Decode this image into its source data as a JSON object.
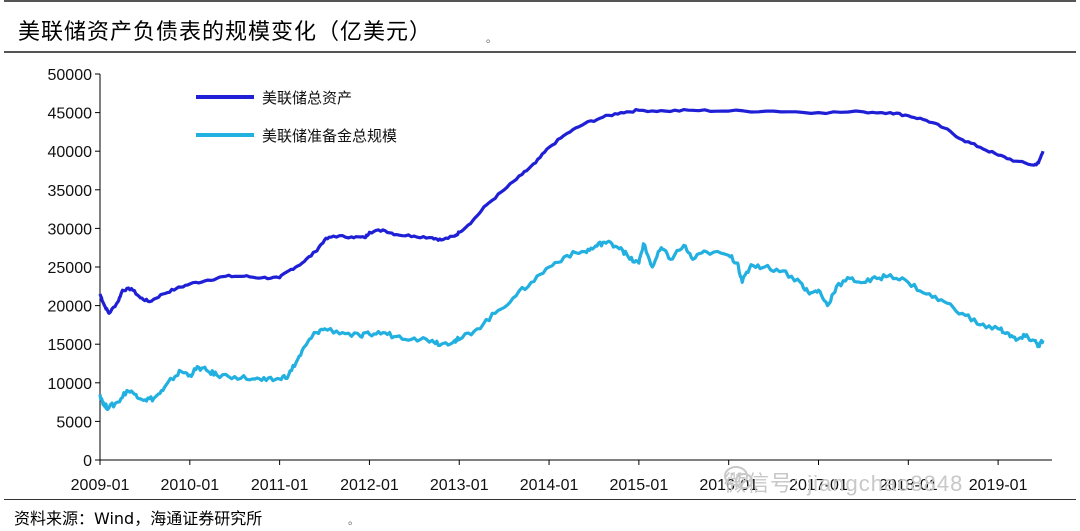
{
  "header": {
    "title": "美联储资产负债表的规模变化（亿美元）",
    "mark": "。"
  },
  "footer": {
    "source": "资料来源：Wind，海通证券研究所",
    "mark": "。"
  },
  "watermark": {
    "text": "微信号: jiangchao8848",
    "icon": "wechat-icon"
  },
  "chart_data": {
    "type": "line",
    "title": "美联储资产负债表的规模变化（亿美元）",
    "xlabel": "",
    "ylabel": "",
    "ylim": [
      0,
      50000
    ],
    "yticks": [
      "0",
      "5000",
      "10000",
      "15000",
      "20000",
      "25000",
      "30000",
      "35000",
      "40000",
      "45000",
      "50000"
    ],
    "xticks": [
      "2009-01",
      "2010-01",
      "2011-01",
      "2012-01",
      "2013-01",
      "2014-01",
      "2015-01",
      "2016-01",
      "2017-01",
      "2018-01",
      "2019-01"
    ],
    "xlim": [
      2009.0,
      2019.6
    ],
    "grid": false,
    "legend_position": "top-left",
    "series": [
      {
        "name": "美联储总资产",
        "color": "#1f1fd6",
        "points": [
          [
            2009.0,
            21500
          ],
          [
            2009.05,
            20000
          ],
          [
            2009.1,
            19000
          ],
          [
            2009.2,
            20500
          ],
          [
            2009.25,
            22000
          ],
          [
            2009.35,
            22200
          ],
          [
            2009.45,
            21000
          ],
          [
            2009.55,
            20500
          ],
          [
            2009.7,
            21500
          ],
          [
            2009.85,
            22200
          ],
          [
            2010.0,
            22800
          ],
          [
            2010.2,
            23300
          ],
          [
            2010.4,
            23800
          ],
          [
            2010.6,
            23800
          ],
          [
            2010.8,
            23600
          ],
          [
            2011.0,
            23600
          ],
          [
            2011.1,
            24500
          ],
          [
            2011.25,
            25500
          ],
          [
            2011.4,
            27000
          ],
          [
            2011.5,
            28500
          ],
          [
            2011.6,
            29000
          ],
          [
            2011.8,
            28900
          ],
          [
            2011.95,
            28800
          ],
          [
            2012.0,
            29500
          ],
          [
            2012.15,
            29800
          ],
          [
            2012.3,
            29200
          ],
          [
            2012.5,
            29000
          ],
          [
            2012.7,
            28800
          ],
          [
            2012.8,
            28500
          ],
          [
            2012.95,
            29000
          ],
          [
            2013.0,
            29500
          ],
          [
            2013.15,
            31000
          ],
          [
            2013.3,
            33000
          ],
          [
            2013.5,
            35000
          ],
          [
            2013.7,
            37000
          ],
          [
            2013.85,
            38500
          ],
          [
            2014.0,
            40500
          ],
          [
            2014.2,
            42300
          ],
          [
            2014.4,
            43600
          ],
          [
            2014.6,
            44400
          ],
          [
            2014.8,
            45000
          ],
          [
            2015.0,
            45300
          ],
          [
            2015.3,
            45200
          ],
          [
            2015.6,
            45300
          ],
          [
            2016.0,
            45200
          ],
          [
            2016.5,
            45200
          ],
          [
            2017.0,
            45000
          ],
          [
            2017.5,
            45100
          ],
          [
            2017.8,
            45000
          ],
          [
            2018.0,
            44600
          ],
          [
            2018.2,
            44000
          ],
          [
            2018.4,
            43000
          ],
          [
            2018.6,
            41500
          ],
          [
            2018.8,
            40500
          ],
          [
            2019.0,
            39500
          ],
          [
            2019.2,
            38700
          ],
          [
            2019.4,
            38200
          ],
          [
            2019.45,
            38500
          ],
          [
            2019.5,
            40000
          ]
        ]
      },
      {
        "name": "美联储准备金总规模",
        "color": "#22b0e0",
        "points": [
          [
            2009.0,
            8500
          ],
          [
            2009.05,
            7000
          ],
          [
            2009.1,
            6800
          ],
          [
            2009.2,
            7500
          ],
          [
            2009.3,
            9000
          ],
          [
            2009.4,
            8500
          ],
          [
            2009.5,
            7800
          ],
          [
            2009.6,
            8000
          ],
          [
            2009.7,
            9000
          ],
          [
            2009.8,
            10500
          ],
          [
            2009.9,
            11500
          ],
          [
            2010.0,
            11000
          ],
          [
            2010.1,
            12000
          ],
          [
            2010.2,
            11500
          ],
          [
            2010.3,
            11000
          ],
          [
            2010.5,
            10800
          ],
          [
            2010.7,
            10500
          ],
          [
            2010.85,
            10300
          ],
          [
            2011.0,
            10500
          ],
          [
            2011.1,
            11000
          ],
          [
            2011.2,
            13000
          ],
          [
            2011.3,
            15000
          ],
          [
            2011.4,
            16500
          ],
          [
            2011.5,
            17000
          ],
          [
            2011.7,
            16500
          ],
          [
            2011.9,
            16000
          ],
          [
            2012.0,
            16300
          ],
          [
            2012.15,
            16500
          ],
          [
            2012.3,
            16000
          ],
          [
            2012.5,
            15800
          ],
          [
            2012.7,
            15500
          ],
          [
            2012.8,
            15000
          ],
          [
            2012.95,
            15500
          ],
          [
            2013.0,
            15600
          ],
          [
            2013.2,
            17000
          ],
          [
            2013.4,
            19000
          ],
          [
            2013.6,
            21000
          ],
          [
            2013.8,
            23000
          ],
          [
            2014.0,
            25000
          ],
          [
            2014.2,
            26500
          ],
          [
            2014.4,
            27000
          ],
          [
            2014.5,
            27500
          ],
          [
            2014.6,
            28200
          ],
          [
            2014.7,
            28000
          ],
          [
            2014.8,
            27500
          ],
          [
            2014.9,
            26000
          ],
          [
            2015.0,
            25500
          ],
          [
            2015.05,
            28000
          ],
          [
            2015.15,
            25000
          ],
          [
            2015.25,
            27500
          ],
          [
            2015.35,
            26000
          ],
          [
            2015.5,
            27800
          ],
          [
            2015.6,
            26000
          ],
          [
            2015.75,
            27000
          ],
          [
            2016.0,
            26500
          ],
          [
            2016.1,
            25500
          ],
          [
            2016.15,
            23000
          ],
          [
            2016.25,
            25300
          ],
          [
            2016.4,
            25000
          ],
          [
            2016.6,
            24500
          ],
          [
            2016.8,
            23000
          ],
          [
            2016.9,
            21500
          ],
          [
            2017.0,
            22000
          ],
          [
            2017.1,
            20000
          ],
          [
            2017.2,
            22500
          ],
          [
            2017.35,
            23500
          ],
          [
            2017.5,
            23000
          ],
          [
            2017.65,
            23500
          ],
          [
            2017.8,
            24000
          ],
          [
            2018.0,
            23000
          ],
          [
            2018.2,
            21500
          ],
          [
            2018.4,
            20500
          ],
          [
            2018.6,
            19000
          ],
          [
            2018.8,
            17500
          ],
          [
            2019.0,
            17000
          ],
          [
            2019.1,
            16500
          ],
          [
            2019.2,
            15500
          ],
          [
            2019.3,
            16000
          ],
          [
            2019.4,
            15500
          ],
          [
            2019.45,
            14800
          ],
          [
            2019.5,
            15500
          ]
        ]
      }
    ]
  }
}
